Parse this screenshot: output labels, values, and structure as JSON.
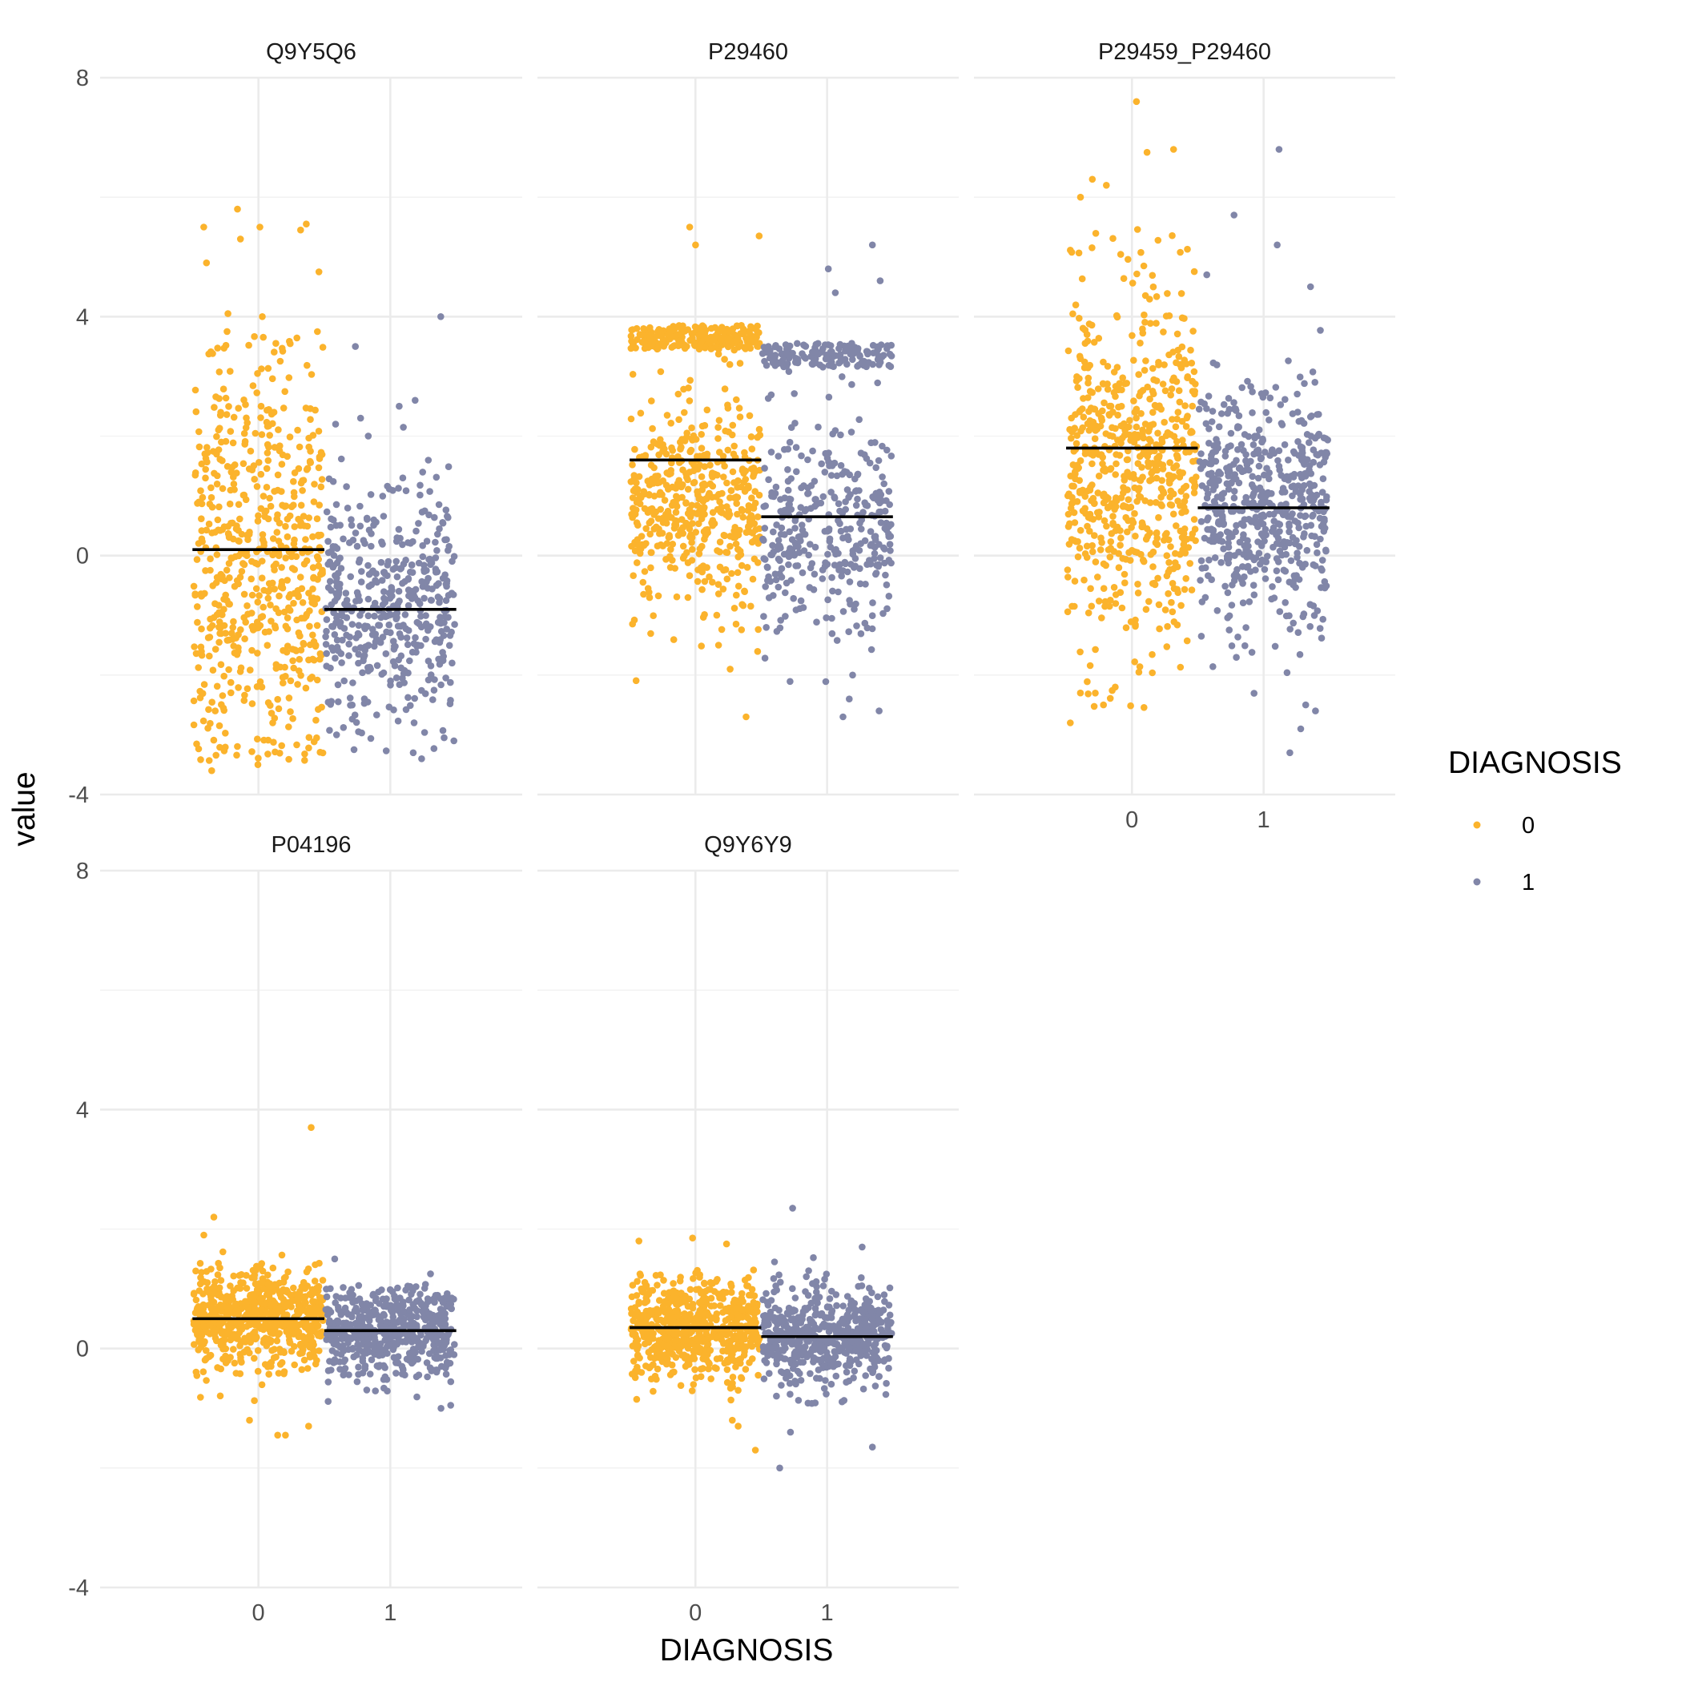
{
  "chart_data": {
    "type": "scatter",
    "subtype": "jittered strip plot faceted by protein, with horizontal mean lines",
    "xlabel": "DIAGNOSIS",
    "ylabel": "value",
    "ylim": [
      -4,
      8
    ],
    "yticks": [
      -4,
      0,
      4,
      8
    ],
    "categories": [
      "0",
      "1"
    ],
    "grid": true,
    "legend": {
      "title": "DIAGNOSIS",
      "position": "right",
      "entries": [
        {
          "label": "0",
          "color": "#fbb32c"
        },
        {
          "label": "1",
          "color": "#8186a8"
        }
      ]
    },
    "colors": {
      "0": "#fbb32c",
      "1": "#8186a8",
      "mean_line": "#000000"
    },
    "facets": [
      {
        "title": "Q9Y5Q6",
        "series": [
          {
            "name": "0",
            "n": 600,
            "mean": 0.1,
            "center": 0.0,
            "sd": 1.75,
            "min": -3.6,
            "max": 5.8,
            "outliers": [
              5.8,
              5.55,
              5.5,
              5.5,
              5.45,
              5.3,
              4.9,
              4.75,
              4.05,
              4.0,
              -3.5,
              -3.6
            ]
          },
          {
            "name": "1",
            "n": 450,
            "mean": -0.9,
            "center": -0.85,
            "sd": 1.0,
            "min": -3.4,
            "max": 4.0,
            "outliers": [
              4.0,
              3.5,
              2.6,
              2.5,
              2.3,
              2.2,
              -3.0,
              -3.1,
              -3.3,
              -3.4
            ]
          }
        ]
      },
      {
        "title": "P29460",
        "series": [
          {
            "name": "0",
            "n": 700,
            "mean": 1.6,
            "center": 0.8,
            "sd": 0.9,
            "upper_cluster": 4.3,
            "min": -2.7,
            "max": 5.5,
            "outliers": [
              5.5,
              5.35,
              5.2,
              -1.5,
              -1.9,
              -2.7
            ]
          },
          {
            "name": "1",
            "n": 500,
            "mean": 0.65,
            "center": 0.5,
            "sd": 0.9,
            "upper_cluster": 4.2,
            "min": -2.7,
            "max": 5.2,
            "outliers": [
              5.2,
              4.8,
              4.6,
              4.4,
              -2.0,
              -2.4,
              -2.6,
              -2.7
            ]
          }
        ]
      },
      {
        "title": "P29459_P29460",
        "series": [
          {
            "name": "0",
            "n": 650,
            "mean": 1.8,
            "center": 1.5,
            "sd": 1.5,
            "min": -2.8,
            "max": 7.6,
            "outliers": [
              7.6,
              6.8,
              6.75,
              6.3,
              6.2,
              6.0,
              -2.2,
              -2.3,
              -2.5,
              -2.8
            ]
          },
          {
            "name": "1",
            "n": 550,
            "mean": 0.8,
            "center": 0.8,
            "sd": 1.0,
            "min": -3.3,
            "max": 6.8,
            "outliers": [
              6.8,
              5.7,
              5.2,
              4.7,
              4.5,
              -2.5,
              -2.6,
              -2.9,
              -3.3
            ]
          }
        ]
      },
      {
        "title": "P04196",
        "series": [
          {
            "name": "0",
            "n": 650,
            "mean": 0.5,
            "center": 0.5,
            "sd": 0.4,
            "min": -1.45,
            "max": 3.7,
            "outliers": [
              3.7,
              2.2,
              1.9,
              -1.2,
              -1.3,
              -1.45,
              -1.45
            ]
          },
          {
            "name": "1",
            "n": 550,
            "mean": 0.3,
            "center": 0.3,
            "sd": 0.38,
            "min": -1.0,
            "max": 1.5,
            "outliers": [
              1.5,
              1.25,
              -0.95,
              -1.0
            ]
          }
        ]
      },
      {
        "title": "Q9Y6Y9",
        "series": [
          {
            "name": "0",
            "n": 650,
            "mean": 0.35,
            "center": 0.35,
            "sd": 0.42,
            "min": -1.7,
            "max": 1.85,
            "outliers": [
              1.85,
              1.8,
              1.75,
              -1.2,
              -1.3,
              -1.7
            ]
          },
          {
            "name": "1",
            "n": 550,
            "mean": 0.2,
            "center": 0.2,
            "sd": 0.4,
            "min": -2.0,
            "max": 2.35,
            "outliers": [
              2.35,
              1.7,
              1.45,
              -1.4,
              -1.65,
              -2.0
            ]
          }
        ]
      }
    ]
  }
}
